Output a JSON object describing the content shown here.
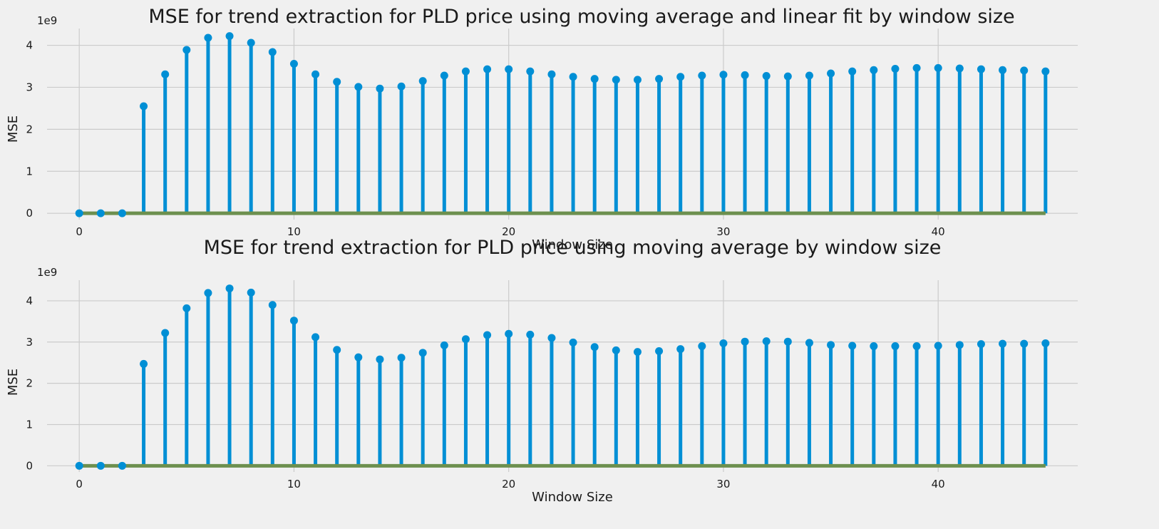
{
  "chart_data": [
    {
      "type": "stem",
      "title": "MSE for trend extraction for PLD price using moving average and linear fit by window size",
      "xlabel": "Window Size",
      "ylabel": "MSE",
      "y_offset_text": "1e9",
      "xlim": [
        -1.5,
        46.5
      ],
      "ylim": [
        -0.15,
        4.4
      ],
      "y_scale": 1000000000,
      "x_ticks": [
        0,
        10,
        20,
        30,
        40
      ],
      "y_ticks": [
        0,
        1,
        2,
        3,
        4
      ],
      "x": [
        0,
        1,
        2,
        3,
        4,
        5,
        6,
        7,
        8,
        9,
        10,
        11,
        12,
        13,
        14,
        15,
        16,
        17,
        18,
        19,
        20,
        21,
        22,
        23,
        24,
        25,
        26,
        27,
        28,
        29,
        30,
        31,
        32,
        33,
        34,
        35,
        36,
        37,
        38,
        39,
        40,
        41,
        42,
        43,
        44,
        45
      ],
      "values": [
        0,
        0,
        0,
        2.55,
        3.31,
        3.89,
        4.18,
        4.22,
        4.06,
        3.84,
        3.56,
        3.31,
        3.13,
        3.01,
        2.97,
        3.02,
        3.15,
        3.28,
        3.38,
        3.43,
        3.43,
        3.38,
        3.31,
        3.25,
        3.2,
        3.18,
        3.18,
        3.2,
        3.25,
        3.28,
        3.3,
        3.29,
        3.27,
        3.26,
        3.28,
        3.33,
        3.38,
        3.41,
        3.44,
        3.46,
        3.46,
        3.45,
        3.43,
        3.41,
        3.4,
        3.38
      ],
      "baseline": 0,
      "colors": {
        "stem": "#008fd5",
        "baseline": "#6d904f"
      },
      "grid": true
    },
    {
      "type": "stem",
      "title": "MSE for trend extraction for PLD price using moving average by window size",
      "xlabel": "Window Size",
      "ylabel": "MSE",
      "y_offset_text": "1e9",
      "xlim": [
        -1.5,
        46.5
      ],
      "ylim": [
        -0.15,
        4.5
      ],
      "y_scale": 1000000000,
      "x_ticks": [
        0,
        10,
        20,
        30,
        40
      ],
      "y_ticks": [
        0,
        1,
        2,
        3,
        4
      ],
      "x": [
        0,
        1,
        2,
        3,
        4,
        5,
        6,
        7,
        8,
        9,
        10,
        11,
        12,
        13,
        14,
        15,
        16,
        17,
        18,
        19,
        20,
        21,
        22,
        23,
        24,
        25,
        26,
        27,
        28,
        29,
        30,
        31,
        32,
        33,
        34,
        35,
        36,
        37,
        38,
        39,
        40,
        41,
        42,
        43,
        44,
        45
      ],
      "values": [
        0,
        0,
        0,
        2.47,
        3.22,
        3.82,
        4.19,
        4.3,
        4.2,
        3.9,
        3.52,
        3.12,
        2.81,
        2.63,
        2.58,
        2.62,
        2.74,
        2.92,
        3.07,
        3.17,
        3.2,
        3.18,
        3.1,
        2.99,
        2.88,
        2.8,
        2.76,
        2.78,
        2.83,
        2.9,
        2.97,
        3.01,
        3.02,
        3.01,
        2.98,
        2.93,
        2.91,
        2.9,
        2.9,
        2.9,
        2.91,
        2.93,
        2.95,
        2.96,
        2.96,
        2.97
      ],
      "baseline": 0,
      "colors": {
        "stem": "#008fd5",
        "baseline": "#6d904f"
      },
      "grid": true
    }
  ]
}
